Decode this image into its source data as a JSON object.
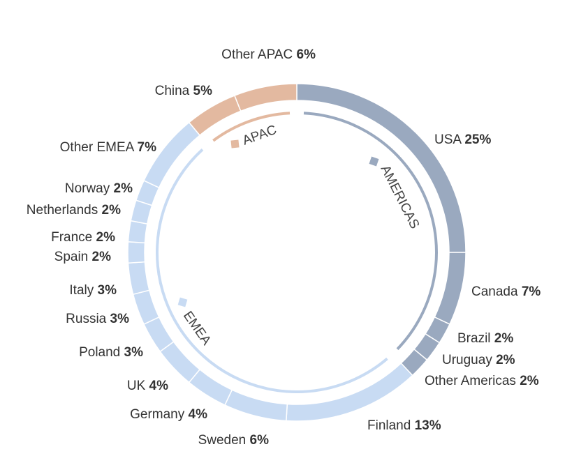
{
  "chart_data": {
    "type": "donut",
    "unit": "%",
    "colors": {
      "AMERICAS": "#9aa9bf",
      "EMEA": "#c8dbf3",
      "APAC": "#e3b9a0",
      "separator": "#ffffff"
    },
    "segments": [
      {
        "name": "USA",
        "value": 25,
        "region": "AMERICAS",
        "label": "USA",
        "pct": "25%"
      },
      {
        "name": "Canada",
        "value": 7,
        "region": "AMERICAS",
        "label": "Canada",
        "pct": "7%"
      },
      {
        "name": "Brazil",
        "value": 2,
        "region": "AMERICAS",
        "label": "Brazil",
        "pct": "2%"
      },
      {
        "name": "Uruguay",
        "value": 2,
        "region": "AMERICAS",
        "label": "Uruguay",
        "pct": "2%"
      },
      {
        "name": "Other Americas",
        "value": 2,
        "region": "AMERICAS",
        "label": "Other Americas",
        "pct": "2%"
      },
      {
        "name": "Finland",
        "value": 13,
        "region": "EMEA",
        "label": "Finland",
        "pct": "13%"
      },
      {
        "name": "Sweden",
        "value": 6,
        "region": "EMEA",
        "label": "Sweden",
        "pct": "6%"
      },
      {
        "name": "Germany",
        "value": 4,
        "region": "EMEA",
        "label": "Germany",
        "pct": "4%"
      },
      {
        "name": "UK",
        "value": 4,
        "region": "EMEA",
        "label": "UK",
        "pct": "4%"
      },
      {
        "name": "Poland",
        "value": 3,
        "region": "EMEA",
        "label": "Poland",
        "pct": "3%"
      },
      {
        "name": "Russia",
        "value": 3,
        "region": "EMEA",
        "label": "Russia",
        "pct": "3%"
      },
      {
        "name": "Italy",
        "value": 3,
        "region": "EMEA",
        "label": "Italy",
        "pct": "3%"
      },
      {
        "name": "Spain",
        "value": 2,
        "region": "EMEA",
        "label": "Spain",
        "pct": "2%"
      },
      {
        "name": "France",
        "value": 2,
        "region": "EMEA",
        "label": "France",
        "pct": "2%"
      },
      {
        "name": "Netherlands",
        "value": 2,
        "region": "EMEA",
        "label": "Netherlands",
        "pct": "2%"
      },
      {
        "name": "Norway",
        "value": 2,
        "region": "EMEA",
        "label": "Norway",
        "pct": "2%"
      },
      {
        "name": "Other EMEA",
        "value": 7,
        "region": "EMEA",
        "label": "Other EMEA",
        "pct": "7%"
      },
      {
        "name": "China",
        "value": 5,
        "region": "APAC",
        "label": "China",
        "pct": "5%"
      },
      {
        "name": "Other APAC",
        "value": 6,
        "region": "APAC",
        "label": "Other APAC",
        "pct": "6%"
      }
    ],
    "regions": [
      {
        "name": "AMERICAS",
        "label": "AMERICAS"
      },
      {
        "name": "EMEA",
        "label": "EMEA"
      },
      {
        "name": "APAC",
        "label": "APAC"
      }
    ]
  }
}
